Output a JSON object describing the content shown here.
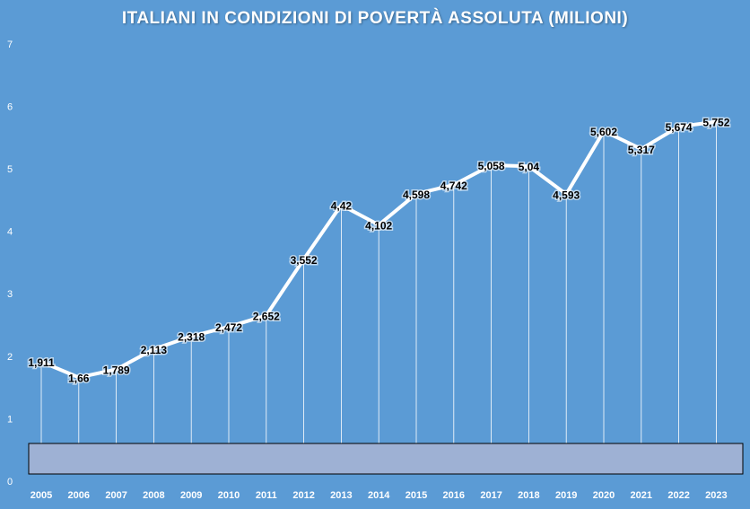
{
  "chart_data": {
    "type": "line",
    "title": "ITALIANI  IN CONDIZIONI DI POVERTÀ ASSOLUTA (MILIONI)",
    "xlabel": "",
    "ylabel": "",
    "ylim": [
      0,
      7
    ],
    "yticks": [
      "0",
      "1",
      "2",
      "3",
      "4",
      "5",
      "6",
      "7"
    ],
    "grid": false,
    "categories": [
      "2005",
      "2006",
      "2007",
      "2008",
      "2009",
      "2010",
      "2011",
      "2012",
      "2013",
      "2014",
      "2015",
      "2016",
      "2017",
      "2018",
      "2019",
      "2020",
      "2021",
      "2022",
      "2023"
    ],
    "values": [
      1.911,
      1.66,
      1.789,
      2.113,
      2.318,
      2.472,
      2.652,
      3.552,
      4.42,
      4.102,
      4.598,
      4.742,
      5.058,
      5.04,
      4.593,
      5.602,
      5.317,
      5.674,
      5.752
    ],
    "data_labels": [
      "1,911",
      "1,66",
      "1,789",
      "2,113",
      "2,318",
      "2,472",
      "2,652",
      "3,552",
      "4,42",
      "4,102",
      "4,598",
      "4,742",
      "5,058",
      "5,04",
      "4,593",
      "5,602",
      "5,317",
      "5,674",
      "5,752"
    ],
    "line_color": "#ffffff",
    "background_color": "#5b9bd5",
    "overlay_box_color": "#9eb1d4"
  }
}
